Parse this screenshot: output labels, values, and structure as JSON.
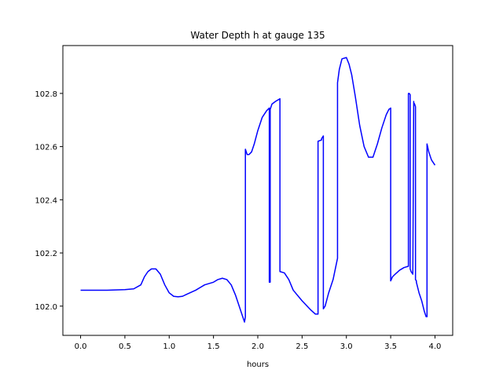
{
  "chart_data": {
    "type": "line",
    "title": "Water Depth h at gauge 135",
    "xlabel": "hours",
    "ylabel": "",
    "xlim": [
      -0.2,
      4.2
    ],
    "ylim": [
      101.89,
      102.98
    ],
    "xticks": [
      0.0,
      0.5,
      1.0,
      1.5,
      2.0,
      2.5,
      3.0,
      3.5,
      4.0
    ],
    "xtick_labels": [
      "0.0",
      "0.5",
      "1.0",
      "1.5",
      "2.0",
      "2.5",
      "3.0",
      "3.5",
      "4.0"
    ],
    "yticks": [
      102.0,
      102.2,
      102.4,
      102.6,
      102.8
    ],
    "ytick_labels": [
      "102.0",
      "102.2",
      "102.4",
      "102.6",
      "102.8"
    ],
    "grid": false,
    "series": [
      {
        "color": "#0000ff",
        "x": [
          0.0,
          0.3,
          0.5,
          0.6,
          0.68,
          0.72,
          0.76,
          0.8,
          0.85,
          0.9,
          0.95,
          1.0,
          1.05,
          1.1,
          1.15,
          1.2,
          1.3,
          1.4,
          1.5,
          1.55,
          1.6,
          1.65,
          1.7,
          1.75,
          1.8,
          1.85,
          1.86,
          1.86,
          1.88,
          1.9,
          1.93,
          1.96,
          2.0,
          2.05,
          2.1,
          2.13,
          2.13,
          2.14,
          2.14,
          2.16,
          2.2,
          2.25,
          2.25,
          2.3,
          2.35,
          2.4,
          2.5,
          2.6,
          2.65,
          2.68,
          2.68,
          2.72,
          2.72,
          2.74,
          2.74,
          2.76,
          2.8,
          2.85,
          2.9,
          2.9,
          2.92,
          2.95,
          3.0,
          3.03,
          3.06,
          3.1,
          3.15,
          3.2,
          3.25,
          3.3,
          3.32,
          3.35,
          3.4,
          3.45,
          3.48,
          3.5,
          3.5,
          3.52,
          3.55,
          3.6,
          3.65,
          3.7,
          3.7,
          3.71,
          3.72,
          3.72,
          3.73,
          3.74,
          3.75,
          3.76,
          3.76,
          3.77,
          3.78,
          3.78,
          3.79,
          3.79,
          3.82,
          3.85,
          3.88,
          3.9,
          3.91,
          3.91,
          3.93,
          3.96,
          3.98,
          4.0
        ],
        "y": [
          102.06,
          102.06,
          102.062,
          102.065,
          102.08,
          102.11,
          102.13,
          102.14,
          102.14,
          102.12,
          102.08,
          102.05,
          102.037,
          102.035,
          102.037,
          102.045,
          102.06,
          102.08,
          102.09,
          102.1,
          102.105,
          102.1,
          102.08,
          102.04,
          101.99,
          101.94,
          101.96,
          102.59,
          102.57,
          102.57,
          102.58,
          102.61,
          102.66,
          102.71,
          102.735,
          102.745,
          102.09,
          102.09,
          102.74,
          102.76,
          102.77,
          102.78,
          102.13,
          102.125,
          102.1,
          102.06,
          102.02,
          101.985,
          101.97,
          101.97,
          102.62,
          102.625,
          102.63,
          102.64,
          101.99,
          102.0,
          102.05,
          102.1,
          102.18,
          102.84,
          102.89,
          102.93,
          102.935,
          102.91,
          102.87,
          102.79,
          102.68,
          102.6,
          102.56,
          102.56,
          102.58,
          102.61,
          102.67,
          102.72,
          102.74,
          102.745,
          102.095,
          102.11,
          102.12,
          102.135,
          102.145,
          102.15,
          102.8,
          102.8,
          102.795,
          102.14,
          102.13,
          102.125,
          102.12,
          102.77,
          102.765,
          102.76,
          102.75,
          102.1,
          102.095,
          102.09,
          102.05,
          102.02,
          101.98,
          101.96,
          101.96,
          102.61,
          102.58,
          102.55,
          102.54,
          102.53
        ]
      }
    ]
  }
}
